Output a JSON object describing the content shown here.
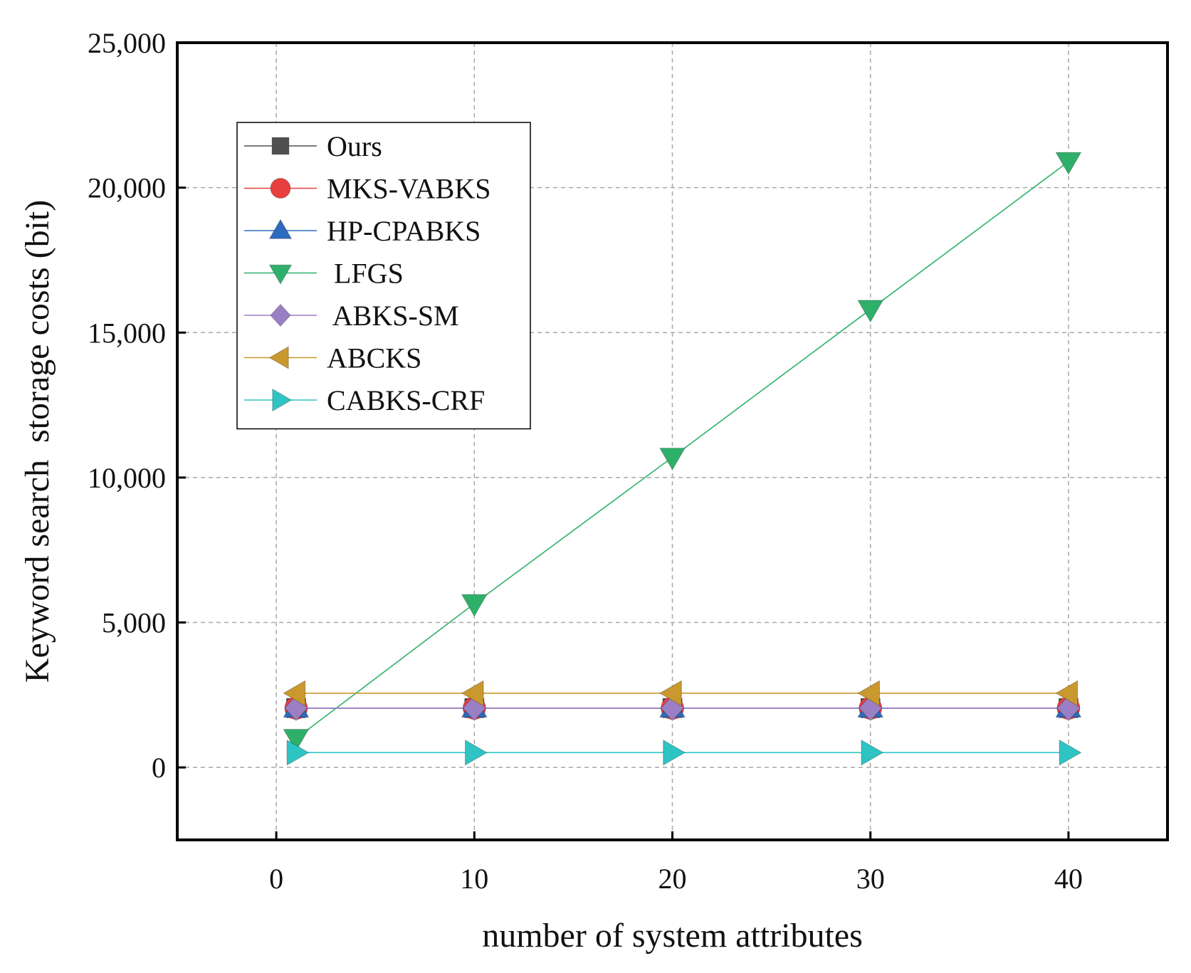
{
  "chart_data": {
    "type": "line",
    "title": "",
    "xlabel": "number of system attributes",
    "ylabel": "Keyword search  storage costs (bit)",
    "xlim": [
      -5,
      45
    ],
    "ylim": [
      -2500,
      25000
    ],
    "x_ticks": [
      0,
      10,
      20,
      30,
      40
    ],
    "x_tick_labels": [
      "0",
      "10",
      "20",
      "30",
      "40"
    ],
    "y_ticks": [
      0,
      5000,
      10000,
      15000,
      20000,
      25000
    ],
    "y_tick_labels": [
      "0",
      "5,000",
      "10,000",
      "15,000",
      "20,000",
      "25,000"
    ],
    "grid": true,
    "legend_position": "top-left",
    "x": [
      1,
      10,
      20,
      30,
      40
    ],
    "series": [
      {
        "name": "Ours",
        "values": [
          2048,
          2048,
          2048,
          2048,
          2048
        ],
        "color": "#505050",
        "marker": "square"
      },
      {
        "name": "MKS-VABKS",
        "values": [
          2048,
          2048,
          2048,
          2048,
          2048
        ],
        "color": "#e84040",
        "marker": "circle"
      },
      {
        "name": "HP-CPABKS",
        "values": [
          2048,
          2048,
          2048,
          2048,
          2048
        ],
        "color": "#2d6bbf",
        "marker": "triangle-up"
      },
      {
        "name": " LFGS",
        "values": [
          1000,
          5650,
          10700,
          15800,
          20900
        ],
        "color": "#2fb06a",
        "marker": "triangle-down"
      },
      {
        "name": " ABKS-SM",
        "values": [
          2048,
          2048,
          2048,
          2048,
          2048
        ],
        "color": "#9b7fc4",
        "marker": "diamond"
      },
      {
        "name": "ABCKS",
        "values": [
          2560,
          2560,
          2560,
          2560,
          2560
        ],
        "color": "#c9982e",
        "marker": "triangle-left"
      },
      {
        "name": "CABKS-CRF",
        "values": [
          512,
          512,
          512,
          512,
          512
        ],
        "color": "#2ec4c4",
        "marker": "triangle-right"
      }
    ]
  }
}
